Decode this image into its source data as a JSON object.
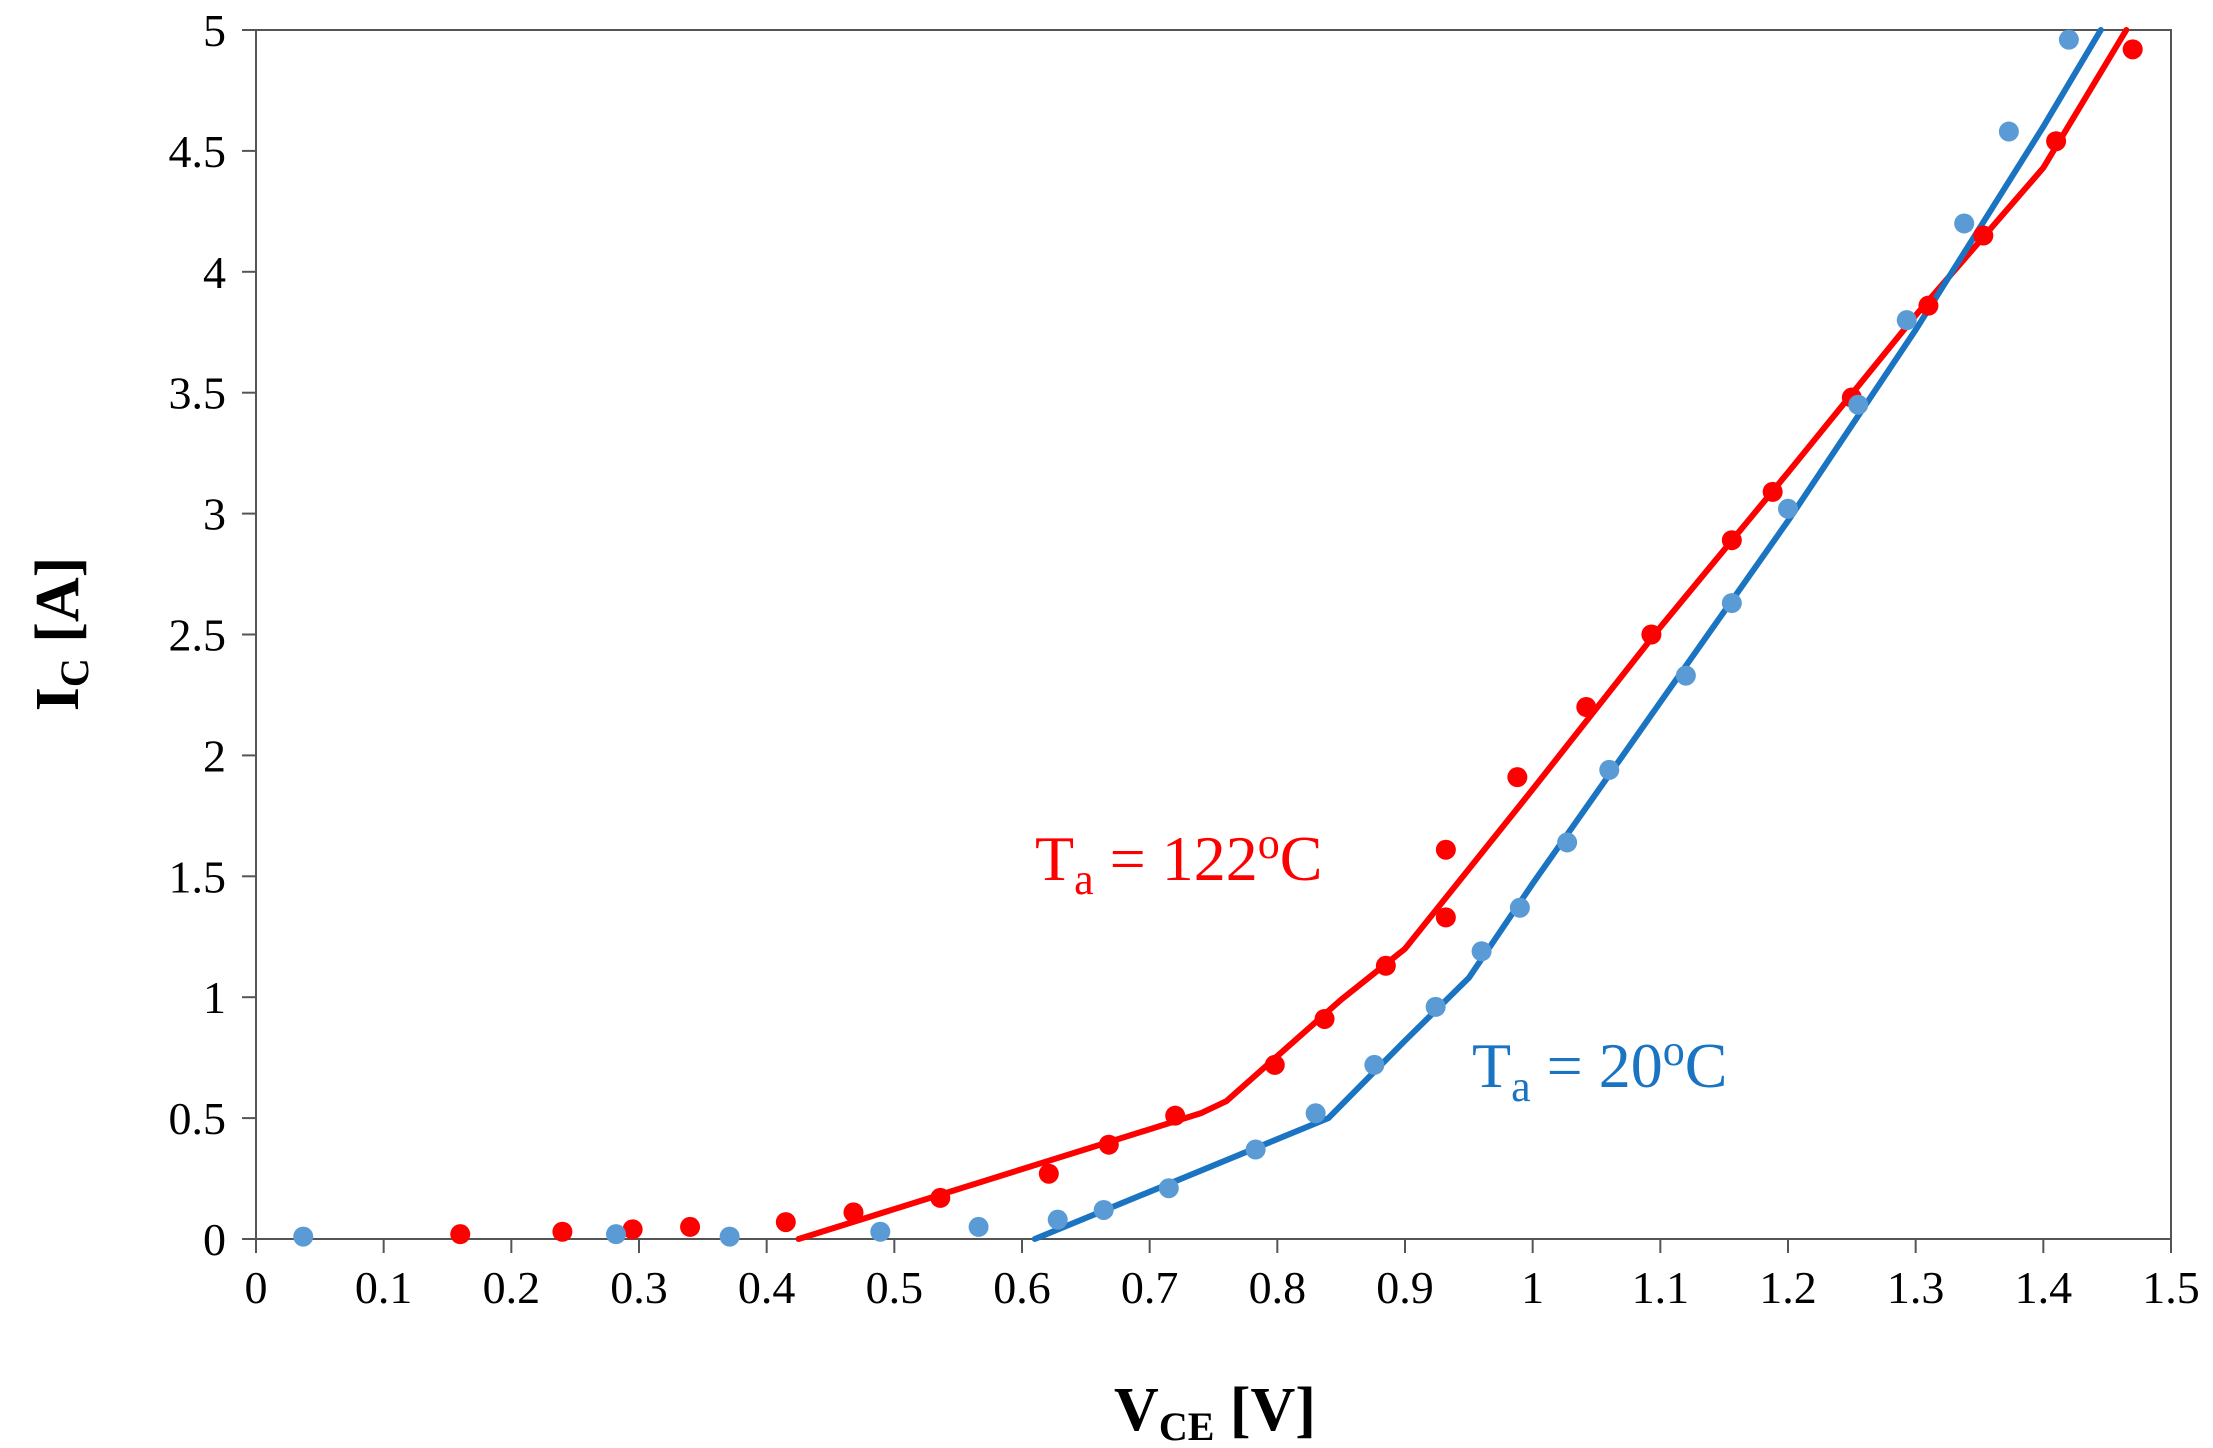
{
  "chart_data": {
    "type": "scatter",
    "title": "",
    "xlabel": {
      "main": "V",
      "sub": "CE",
      "unit": " [V]"
    },
    "ylabel": {
      "main": "I",
      "sub": "C",
      "unit": " [A]"
    },
    "xlim": [
      0,
      1.5
    ],
    "ylim": [
      0,
      5
    ],
    "grid": false,
    "x_ticks": [
      "0",
      "0.1",
      "0.2",
      "0.3",
      "0.4",
      "0.5",
      "0.6",
      "0.7",
      "0.8",
      "0.9",
      "1",
      "1.1",
      "1.2",
      "1.3",
      "1.4",
      "1.5"
    ],
    "y_ticks": [
      "0",
      "0.5",
      "1",
      "1.5",
      "2",
      "2.5",
      "3",
      "3.5",
      "4",
      "4.5",
      "5"
    ],
    "series": [
      {
        "name": "T_a = 122°C",
        "color": "#ff0000",
        "points": [
          [
            0.16,
            0.02
          ],
          [
            0.24,
            0.03
          ],
          [
            0.295,
            0.04
          ],
          [
            0.34,
            0.05
          ],
          [
            0.415,
            0.07
          ],
          [
            0.468,
            0.11
          ],
          [
            0.536,
            0.17
          ],
          [
            0.621,
            0.27
          ],
          [
            0.668,
            0.39
          ],
          [
            0.72,
            0.51
          ],
          [
            0.798,
            0.72
          ],
          [
            0.837,
            0.91
          ],
          [
            0.885,
            1.13
          ],
          [
            0.932,
            1.61
          ],
          [
            0.932,
            1.33
          ],
          [
            0.988,
            1.91
          ],
          [
            1.042,
            2.2
          ],
          [
            1.093,
            2.5
          ],
          [
            1.156,
            2.89
          ],
          [
            1.188,
            3.09
          ],
          [
            1.25,
            3.48
          ],
          [
            1.31,
            3.86
          ],
          [
            1.353,
            4.15
          ],
          [
            1.41,
            4.54
          ],
          [
            1.47,
            4.92
          ]
        ],
        "fit_line": [
          [
            0.425,
            0.0
          ],
          [
            0.74,
            0.52
          ],
          [
            0.76,
            0.57
          ],
          [
            0.85,
            0.99
          ],
          [
            0.9,
            1.2
          ],
          [
            1.0,
            1.86
          ],
          [
            1.1,
            2.53
          ],
          [
            1.2,
            3.17
          ],
          [
            1.3,
            3.82
          ],
          [
            1.4,
            4.43
          ],
          [
            1.465,
            5.0
          ]
        ]
      },
      {
        "name": "T_a = 20°C",
        "color": "#1a74c2",
        "marker_color": "#5b9bd5",
        "points": [
          [
            0.037,
            0.01
          ],
          [
            0.282,
            0.02
          ],
          [
            0.371,
            0.01
          ],
          [
            0.489,
            0.03
          ],
          [
            0.566,
            0.05
          ],
          [
            0.628,
            0.08
          ],
          [
            0.664,
            0.12
          ],
          [
            0.715,
            0.21
          ],
          [
            0.783,
            0.37
          ],
          [
            0.83,
            0.52
          ],
          [
            0.876,
            0.72
          ],
          [
            0.924,
            0.96
          ],
          [
            0.96,
            1.19
          ],
          [
            0.99,
            1.37
          ],
          [
            1.027,
            1.64
          ],
          [
            1.06,
            1.94
          ],
          [
            1.12,
            2.33
          ],
          [
            1.156,
            2.63
          ],
          [
            1.2,
            3.02
          ],
          [
            1.255,
            3.45
          ],
          [
            1.293,
            3.8
          ],
          [
            1.338,
            4.2
          ],
          [
            1.373,
            4.58
          ],
          [
            1.42,
            4.96
          ]
        ],
        "fit_line": [
          [
            0.61,
            0.0
          ],
          [
            0.84,
            0.5
          ],
          [
            0.9,
            0.82
          ],
          [
            0.95,
            1.08
          ],
          [
            1.0,
            1.47
          ],
          [
            1.1,
            2.22
          ],
          [
            1.2,
            2.97
          ],
          [
            1.3,
            3.76
          ],
          [
            1.4,
            4.6
          ],
          [
            1.445,
            5.0
          ]
        ]
      }
    ],
    "annotations": [
      {
        "series": 0,
        "main": "T",
        "sub": "a",
        "text": " = 122",
        "sup": "o",
        "end": "C",
        "color": "#ff0000"
      },
      {
        "series": 1,
        "main": "T",
        "sub": "a",
        "text": " = 20",
        "sup": "o",
        "end": "C",
        "color": "#1a74c2"
      }
    ]
  }
}
